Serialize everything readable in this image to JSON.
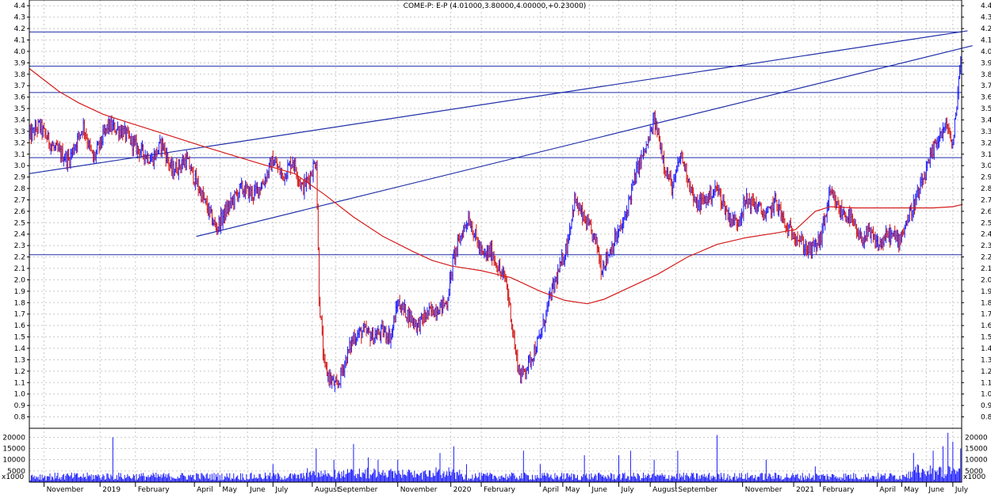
{
  "chart_data": {
    "type": "bar",
    "title": "COME-P: E-P (4.01000,3.80000,4.00000,+0.23000)",
    "price_axis": {
      "ylim": [
        0.7,
        4.45
      ],
      "ticks": [
        "0.8",
        "0.9",
        "1.0",
        "1.1",
        "1.2",
        "1.3",
        "1.4",
        "1.5",
        "1.6",
        "1.7",
        "1.8",
        "1.9",
        "2.0",
        "2.1",
        "2.2",
        "2.3",
        "2.4",
        "2.5",
        "2.6",
        "2.7",
        "2.8",
        "2.9",
        "3.0",
        "3.1",
        "3.2",
        "3.3",
        "3.4",
        "3.5",
        "3.6",
        "3.7",
        "3.8",
        "3.9",
        "4.0",
        "4.1",
        "4.2",
        "4.3",
        "4.4"
      ]
    },
    "volume_axis": {
      "ylim": [
        0,
        24000
      ],
      "ticks": [
        "5000",
        "10000",
        "15000",
        "20000"
      ],
      "unit": "x1000"
    },
    "x_labels": [
      {
        "label": "November",
        "i": 15
      },
      {
        "label": "2019",
        "i": 72
      },
      {
        "label": "February",
        "i": 108
      },
      {
        "label": "April",
        "i": 168
      },
      {
        "label": "May",
        "i": 194
      },
      {
        "label": "June",
        "i": 222
      },
      {
        "label": "July",
        "i": 248
      },
      {
        "label": "August",
        "i": 288
      },
      {
        "label": "September",
        "i": 312
      },
      {
        "label": "November",
        "i": 375
      },
      {
        "label": "2020",
        "i": 429
      },
      {
        "label": "February",
        "i": 460
      },
      {
        "label": "April",
        "i": 520
      },
      {
        "label": "May",
        "i": 543
      },
      {
        "label": "June",
        "i": 570
      },
      {
        "label": "July",
        "i": 600
      },
      {
        "label": "August",
        "i": 632
      },
      {
        "label": "September",
        "i": 658
      },
      {
        "label": "November",
        "i": 726
      },
      {
        "label": "2021",
        "i": 778
      },
      {
        "label": "February",
        "i": 805
      },
      {
        "label": "April",
        "i": 863
      },
      {
        "label": "May",
        "i": 888
      },
      {
        "label": "June",
        "i": 913
      },
      {
        "label": "July",
        "i": 940
      }
    ],
    "series_count": 950,
    "price_anchors": [
      [
        0,
        3.25
      ],
      [
        10,
        3.35
      ],
      [
        25,
        3.15
      ],
      [
        40,
        3.05
      ],
      [
        55,
        3.35
      ],
      [
        65,
        3.05
      ],
      [
        80,
        3.35
      ],
      [
        95,
        3.3
      ],
      [
        110,
        3.15
      ],
      [
        125,
        3.05
      ],
      [
        135,
        3.2
      ],
      [
        145,
        2.95
      ],
      [
        160,
        3.05
      ],
      [
        175,
        2.75
      ],
      [
        190,
        2.45
      ],
      [
        200,
        2.6
      ],
      [
        215,
        2.8
      ],
      [
        228,
        2.75
      ],
      [
        238,
        2.85
      ],
      [
        248,
        3.05
      ],
      [
        258,
        2.9
      ],
      [
        268,
        3.05
      ],
      [
        278,
        2.8
      ],
      [
        285,
        2.9
      ],
      [
        292,
        3.05
      ],
      [
        295,
        1.85
      ],
      [
        300,
        1.25
      ],
      [
        305,
        1.15
      ],
      [
        313,
        1.05
      ],
      [
        320,
        1.25
      ],
      [
        330,
        1.5
      ],
      [
        340,
        1.55
      ],
      [
        350,
        1.5
      ],
      [
        360,
        1.55
      ],
      [
        368,
        1.5
      ],
      [
        375,
        1.8
      ],
      [
        385,
        1.7
      ],
      [
        395,
        1.6
      ],
      [
        405,
        1.7
      ],
      [
        415,
        1.75
      ],
      [
        425,
        1.8
      ],
      [
        432,
        2.2
      ],
      [
        440,
        2.4
      ],
      [
        447,
        2.55
      ],
      [
        455,
        2.35
      ],
      [
        462,
        2.2
      ],
      [
        470,
        2.25
      ],
      [
        480,
        2.05
      ],
      [
        485,
        2.0
      ],
      [
        490,
        1.7
      ],
      [
        495,
        1.35
      ],
      [
        500,
        1.15
      ],
      [
        510,
        1.3
      ],
      [
        520,
        1.5
      ],
      [
        530,
        1.85
      ],
      [
        540,
        2.1
      ],
      [
        547,
        2.3
      ],
      [
        555,
        2.7
      ],
      [
        563,
        2.55
      ],
      [
        570,
        2.45
      ],
      [
        578,
        2.3
      ],
      [
        582,
        2.1
      ],
      [
        588,
        2.2
      ],
      [
        596,
        2.35
      ],
      [
        605,
        2.5
      ],
      [
        612,
        2.75
      ],
      [
        620,
        3.0
      ],
      [
        630,
        3.2
      ],
      [
        636,
        3.4
      ],
      [
        642,
        3.2
      ],
      [
        648,
        2.95
      ],
      [
        655,
        2.8
      ],
      [
        663,
        3.1
      ],
      [
        672,
        2.85
      ],
      [
        678,
        2.65
      ],
      [
        688,
        2.7
      ],
      [
        700,
        2.8
      ],
      [
        712,
        2.55
      ],
      [
        720,
        2.5
      ],
      [
        730,
        2.7
      ],
      [
        740,
        2.65
      ],
      [
        750,
        2.55
      ],
      [
        760,
        2.7
      ],
      [
        770,
        2.45
      ],
      [
        780,
        2.4
      ],
      [
        788,
        2.3
      ],
      [
        795,
        2.25
      ],
      [
        805,
        2.35
      ],
      [
        815,
        2.75
      ],
      [
        825,
        2.6
      ],
      [
        835,
        2.55
      ],
      [
        845,
        2.35
      ],
      [
        855,
        2.4
      ],
      [
        865,
        2.3
      ],
      [
        875,
        2.4
      ],
      [
        885,
        2.35
      ],
      [
        895,
        2.55
      ],
      [
        905,
        2.75
      ],
      [
        915,
        3.0
      ],
      [
        925,
        3.25
      ],
      [
        935,
        3.35
      ],
      [
        940,
        3.15
      ],
      [
        944,
        3.55
      ],
      [
        948,
        3.95
      ],
      [
        952,
        3.8
      ],
      [
        955,
        3.95
      ]
    ],
    "moving_average": [
      [
        0,
        3.85
      ],
      [
        15,
        3.75
      ],
      [
        30,
        3.65
      ],
      [
        50,
        3.55
      ],
      [
        75,
        3.45
      ],
      [
        100,
        3.38
      ],
      [
        140,
        3.27
      ],
      [
        180,
        3.16
      ],
      [
        230,
        3.03
      ],
      [
        270,
        2.93
      ],
      [
        300,
        2.75
      ],
      [
        330,
        2.55
      ],
      [
        360,
        2.38
      ],
      [
        390,
        2.25
      ],
      [
        410,
        2.17
      ],
      [
        430,
        2.12
      ],
      [
        460,
        2.08
      ],
      [
        490,
        2.02
      ],
      [
        520,
        1.9
      ],
      [
        545,
        1.82
      ],
      [
        568,
        1.79
      ],
      [
        585,
        1.83
      ],
      [
        610,
        1.93
      ],
      [
        640,
        2.05
      ],
      [
        670,
        2.2
      ],
      [
        700,
        2.31
      ],
      [
        730,
        2.37
      ],
      [
        760,
        2.41
      ],
      [
        780,
        2.44
      ],
      [
        800,
        2.6
      ],
      [
        815,
        2.64
      ],
      [
        840,
        2.63
      ],
      [
        870,
        2.63
      ],
      [
        900,
        2.63
      ],
      [
        920,
        2.63
      ],
      [
        940,
        2.64
      ],
      [
        950,
        2.66
      ]
    ],
    "horizontal_lines": [
      4.17,
      3.87,
      3.64,
      3.07,
      2.22
    ],
    "trend_lines": [
      [
        [
          0,
          2.93
        ],
        [
          955,
          4.18
        ]
      ],
      [
        [
          170,
          2.38
        ],
        [
          960,
          4.05
        ]
      ]
    ],
    "volume_spikes": [
      [
        85,
        20000
      ],
      [
        248,
        8000
      ],
      [
        292,
        15000
      ],
      [
        310,
        10000
      ],
      [
        330,
        17000
      ],
      [
        345,
        11000
      ],
      [
        355,
        10000
      ],
      [
        375,
        10000
      ],
      [
        418,
        13000
      ],
      [
        432,
        16000
      ],
      [
        445,
        8000
      ],
      [
        503,
        14000
      ],
      [
        520,
        8000
      ],
      [
        565,
        12000
      ],
      [
        600,
        12000
      ],
      [
        612,
        14000
      ],
      [
        636,
        10000
      ],
      [
        660,
        14000
      ],
      [
        700,
        21000
      ],
      [
        750,
        10000
      ],
      [
        800,
        7000
      ],
      [
        900,
        13000
      ],
      [
        920,
        14000
      ],
      [
        930,
        16000
      ],
      [
        935,
        22000
      ],
      [
        940,
        18000
      ],
      [
        948,
        15000
      ]
    ]
  }
}
